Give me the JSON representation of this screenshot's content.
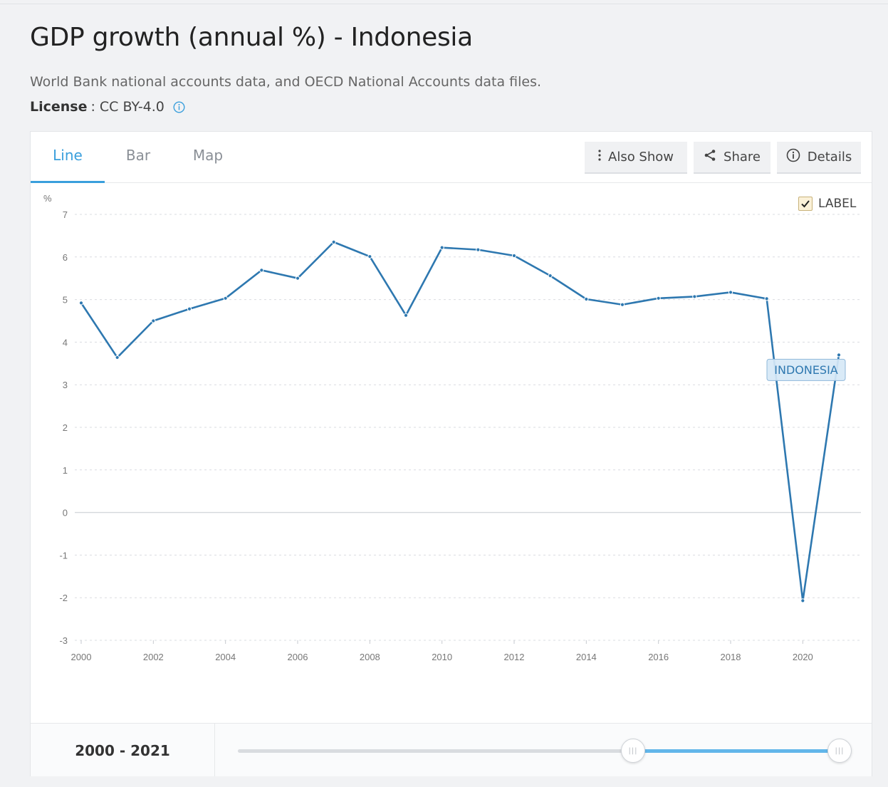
{
  "page": {
    "title": "GDP growth (annual %) - Indonesia",
    "source": "World Bank national accounts data, and OECD National Accounts data files.",
    "license_label": "License",
    "license_sep": ":",
    "license_value": "CC BY-4.0"
  },
  "tabs": [
    {
      "label": "Line",
      "active": true
    },
    {
      "label": "Bar",
      "active": false
    },
    {
      "label": "Map",
      "active": false
    }
  ],
  "toolbar": {
    "also_show": "Also Show",
    "share": "Share",
    "details": "Details"
  },
  "label_toggle": {
    "label": "LABEL",
    "checked": true
  },
  "range": {
    "label": "2000 - 2021",
    "start": 2000,
    "end": 2021
  },
  "colors": {
    "series": "#2e78b0",
    "accent": "#3a9fdc",
    "slider_fill": "#62b6ea",
    "series_label_bg": "#d6e8f6"
  },
  "chart_data": {
    "type": "line",
    "ylabel": "%",
    "x": [
      2000,
      2001,
      2002,
      2003,
      2004,
      2005,
      2006,
      2007,
      2008,
      2009,
      2010,
      2011,
      2012,
      2013,
      2014,
      2015,
      2016,
      2017,
      2018,
      2019,
      2020,
      2021
    ],
    "series": [
      {
        "name": "INDONESIA",
        "values": [
          4.92,
          3.64,
          4.5,
          4.78,
          5.03,
          5.69,
          5.5,
          6.35,
          6.01,
          4.63,
          6.22,
          6.17,
          6.03,
          5.56,
          5.01,
          4.88,
          5.03,
          5.07,
          5.17,
          5.02,
          -2.07,
          3.7
        ]
      }
    ],
    "ylim": [
      -3,
      7
    ],
    "yticks": [
      7,
      6,
      5,
      4,
      3,
      2,
      1,
      0,
      -1,
      -2,
      -3
    ],
    "xticks": [
      2000,
      2002,
      2004,
      2006,
      2008,
      2010,
      2012,
      2014,
      2016,
      2018,
      2020
    ],
    "grid": true,
    "legend": "none"
  }
}
